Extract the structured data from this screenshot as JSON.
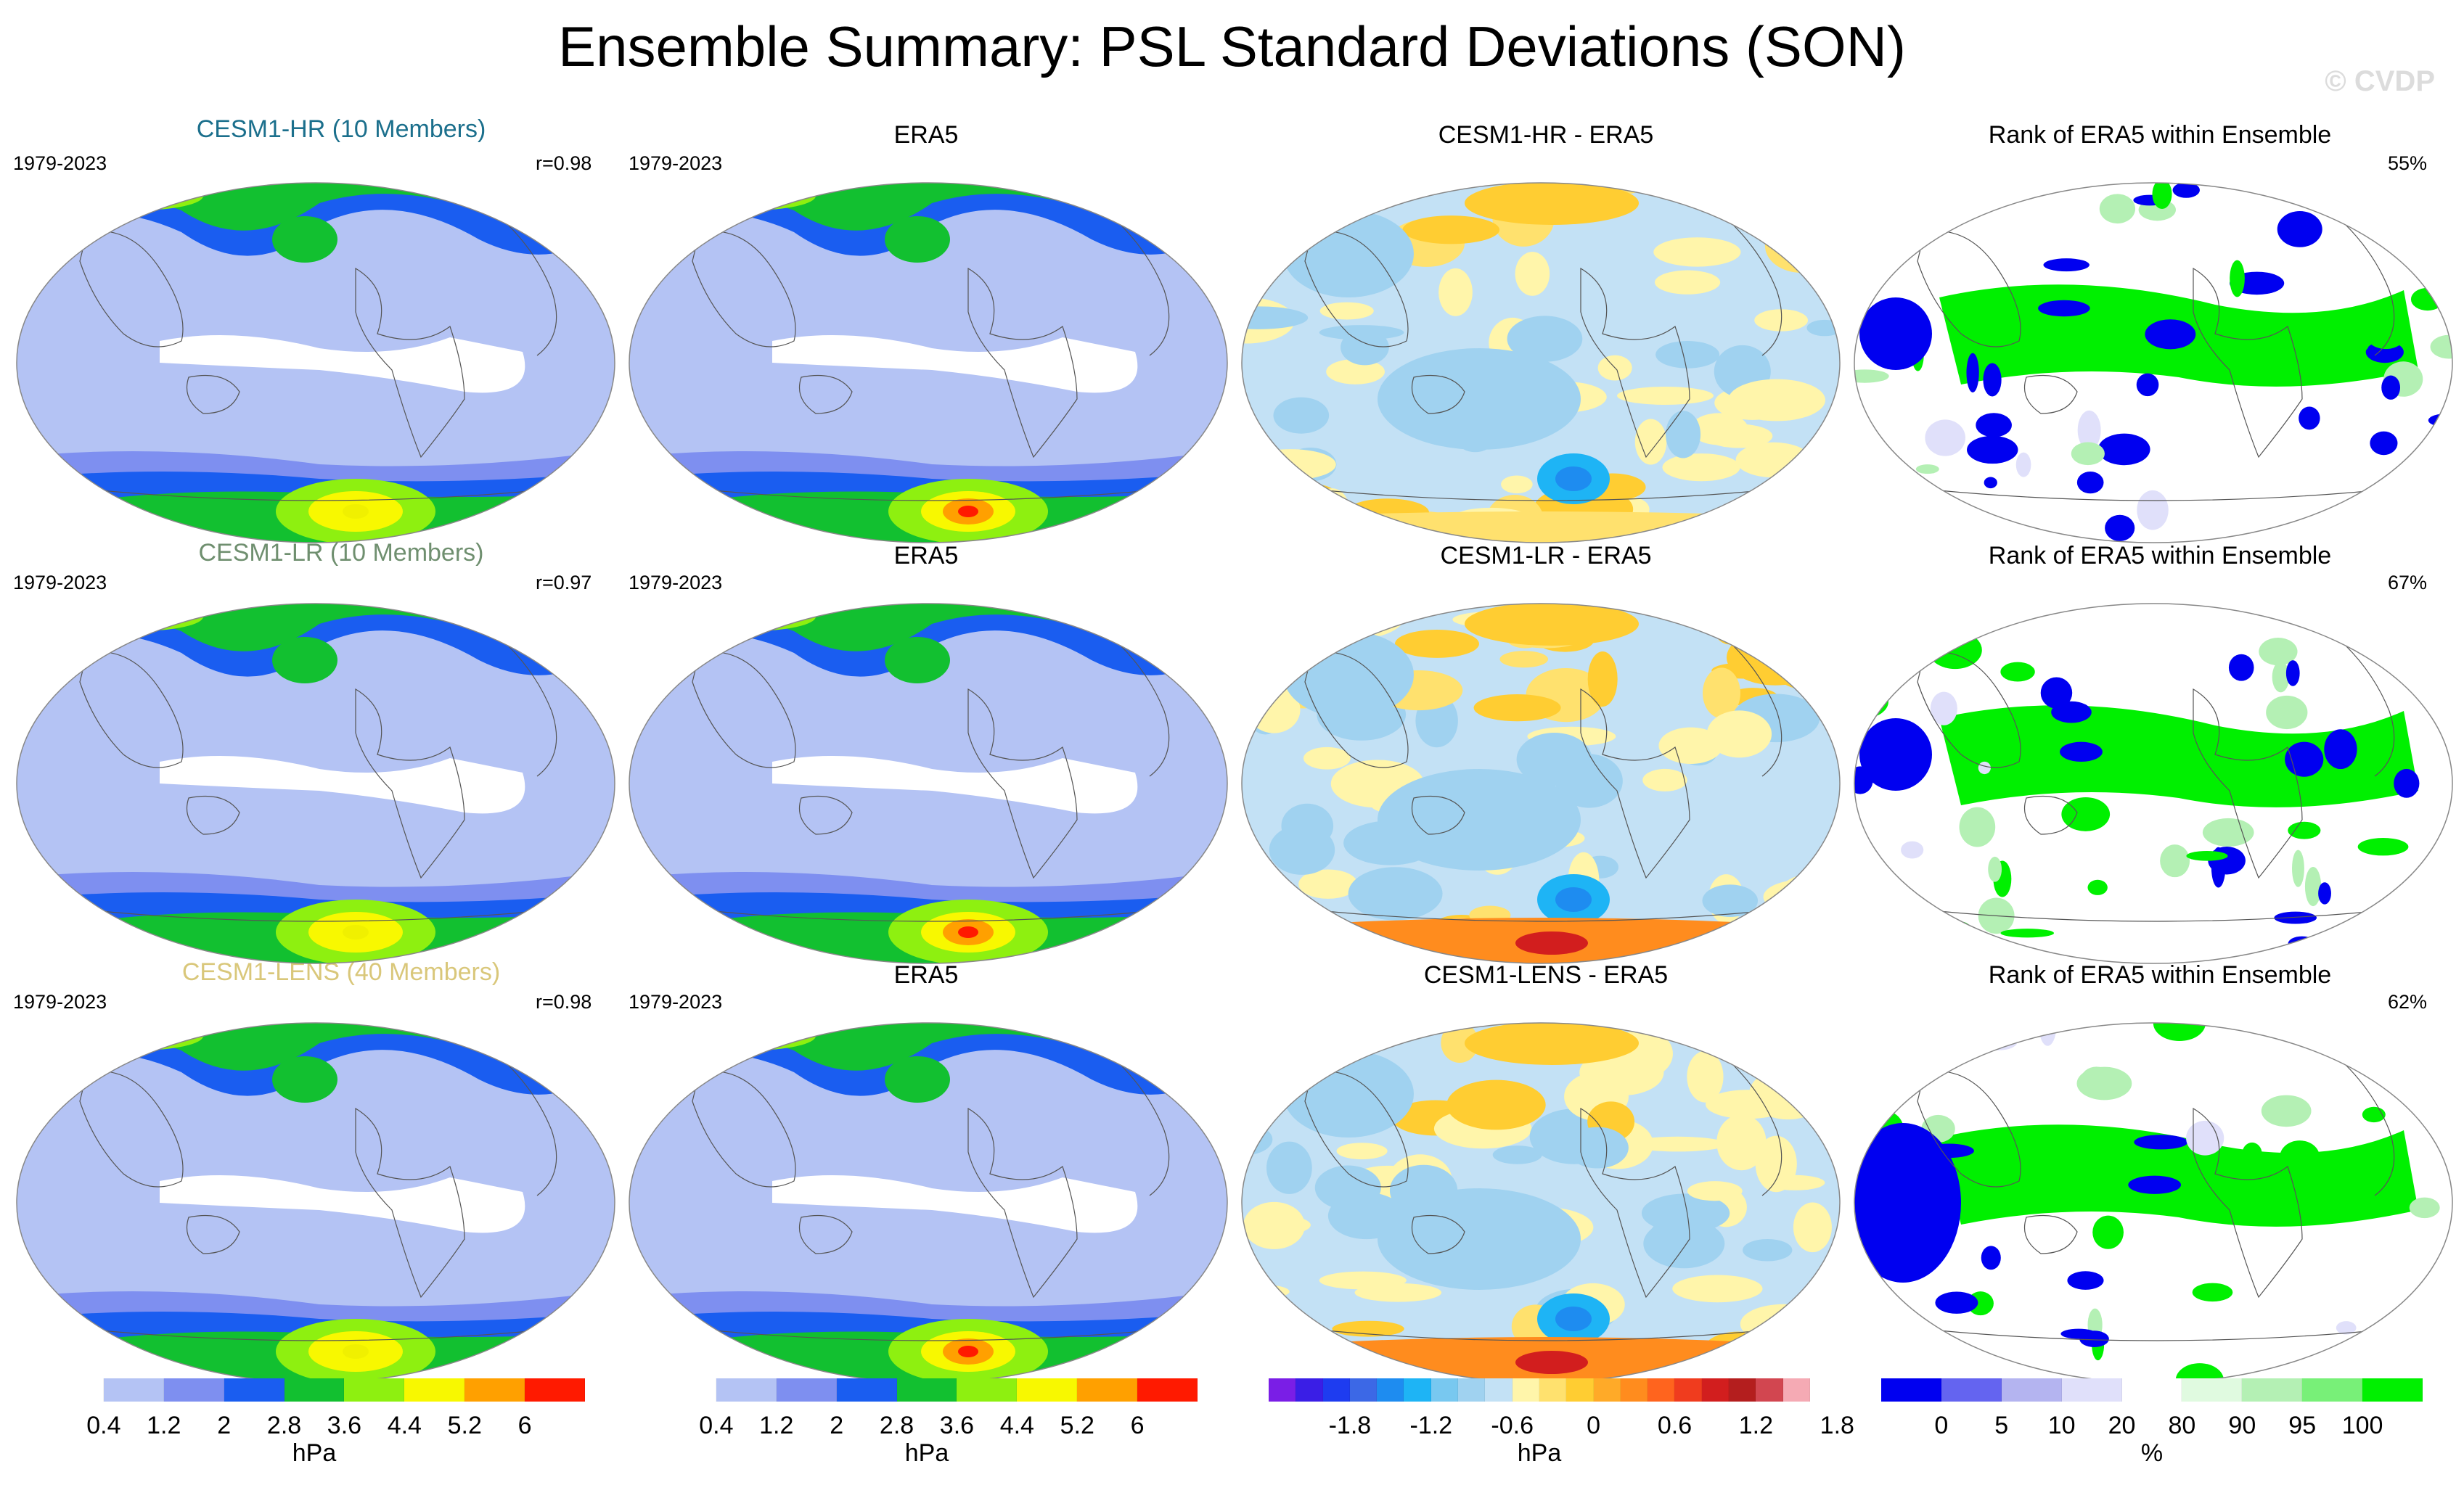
{
  "title": "Ensemble Summary: PSL Standard Deviations (SON)",
  "watermark": "© CVDP",
  "rows": [
    {
      "model": {
        "label": "CESM1-HR (10 Members)",
        "color": "#1b6f8c",
        "period": "1979-2023",
        "r": "r=0.98"
      },
      "obs": {
        "label": "ERA5",
        "period": "1979-2023"
      },
      "diff": {
        "label": "CESM1-HR - ERA5"
      },
      "rank": {
        "label": "Rank of ERA5 within Ensemble",
        "pct": "55%"
      }
    },
    {
      "model": {
        "label": "CESM1-LR (10 Members)",
        "color": "#6f8f6f",
        "period": "1979-2023",
        "r": "r=0.97"
      },
      "obs": {
        "label": "ERA5",
        "period": "1979-2023"
      },
      "diff": {
        "label": "CESM1-LR - ERA5"
      },
      "rank": {
        "label": "Rank of ERA5 within Ensemble",
        "pct": "67%"
      }
    },
    {
      "model": {
        "label": "CESM1-LENS (40 Members)",
        "color": "#d9c77a",
        "period": "1979-2023",
        "r": "r=0.98"
      },
      "obs": {
        "label": "ERA5",
        "period": "1979-2023"
      },
      "diff": {
        "label": "CESM1-LENS - ERA5"
      },
      "rank": {
        "label": "Rank of ERA5 within Ensemble",
        "pct": "62%"
      }
    }
  ],
  "colorbars": [
    {
      "name": "model-std",
      "units": "hPa",
      "colors": [
        "#ffffff",
        "#b4c3f4",
        "#7e8ff0",
        "#1a5df0",
        "#12c030",
        "#8ef010",
        "#f8f800",
        "#ffa000",
        "#ff1a00"
      ],
      "ticks": [
        "0.4",
        "1.2",
        "2",
        "2.8",
        "3.6",
        "4.4",
        "5.2",
        "6"
      ]
    },
    {
      "name": "obs-std",
      "units": "hPa",
      "colors": [
        "#ffffff",
        "#b4c3f4",
        "#7e8ff0",
        "#1a5df0",
        "#12c030",
        "#8ef010",
        "#f8f800",
        "#ffa000",
        "#ff1a00"
      ],
      "ticks": [
        "0.4",
        "1.2",
        "2",
        "2.8",
        "3.6",
        "4.4",
        "5.2",
        "6"
      ]
    },
    {
      "name": "difference",
      "units": "hPa",
      "colors": [
        "#7a1ee6",
        "#3a1ee6",
        "#1e3cf0",
        "#3c68e6",
        "#1e8cf0",
        "#1eb4f5",
        "#78c8f0",
        "#a0d2f0",
        "#c3e1f5",
        "#fff5aa",
        "#ffe16e",
        "#ffcd32",
        "#ffaa28",
        "#ff8c1e",
        "#ff641e",
        "#f03c1e",
        "#d21e1e",
        "#b41e1e",
        "#d24650",
        "#f5aab4"
      ],
      "ticks": [
        "-1.8",
        "-1.2",
        "-0.6",
        "0",
        "0.6",
        "1.2",
        "1.8"
      ]
    },
    {
      "name": "rank",
      "units": "%",
      "colors": [
        "#0000f0",
        "#6464f0",
        "#b4b4f0",
        "#e0e0fa",
        "#ffffff",
        "#e0fae0",
        "#b4f0b4",
        "#78f078",
        "#00f000"
      ],
      "ticks": [
        "0",
        "5",
        "10",
        "20",
        "80",
        "90",
        "95",
        "100"
      ]
    }
  ],
  "chart_data": [
    {
      "type": "map",
      "panel": "model-std",
      "units": "hPa",
      "contour_levels": [
        0.4,
        1.2,
        2,
        2.8,
        3.6,
        4.4,
        5.2,
        6
      ],
      "regions": [
        {
          "name": "tropics",
          "value": 0.8
        },
        {
          "name": "subtropics",
          "value": 1.6
        },
        {
          "name": "midlat_storm_track",
          "value": 3.2
        },
        {
          "name": "southern_ocean",
          "value": 4.0
        },
        {
          "name": "north_pacific_low",
          "value": 3.6
        },
        {
          "name": "amundsen_sea_max",
          "value": 5.2
        }
      ]
    },
    {
      "type": "map",
      "panel": "obs-std",
      "units": "hPa",
      "contour_levels": [
        0.4,
        1.2,
        2,
        2.8,
        3.6,
        4.4,
        5.2,
        6
      ],
      "regions": [
        {
          "name": "tropics",
          "value": 0.8
        },
        {
          "name": "subtropics",
          "value": 1.6
        },
        {
          "name": "midlat_storm_track",
          "value": 3.2
        },
        {
          "name": "southern_ocean",
          "value": 4.4
        },
        {
          "name": "north_pacific_low",
          "value": 3.6
        },
        {
          "name": "amundsen_sea_max",
          "value": 6.0
        }
      ]
    },
    {
      "type": "map",
      "panel": "difference",
      "units": "hPa",
      "contour_levels": [
        -1.8,
        -1.2,
        -0.6,
        0,
        0.6,
        1.2,
        1.8
      ],
      "regions": [
        {
          "name": "tropical_pacific",
          "value": -0.3
        },
        {
          "name": "south_pacific",
          "value": -0.9
        },
        {
          "name": "arctic",
          "value": 0.6
        },
        {
          "name": "antarctic_coast",
          "value": 0.9
        },
        {
          "name": "west_antarctic_min",
          "value": -1.2
        }
      ]
    },
    {
      "type": "map",
      "panel": "rank",
      "units": "%",
      "contour_levels": [
        0,
        5,
        10,
        20,
        80,
        90,
        95,
        100
      ],
      "regions": [
        {
          "name": "tropical_band",
          "value": 100
        },
        {
          "name": "indian_ocean",
          "value": 0
        },
        {
          "name": "extratropics",
          "value": 50
        }
      ]
    }
  ]
}
